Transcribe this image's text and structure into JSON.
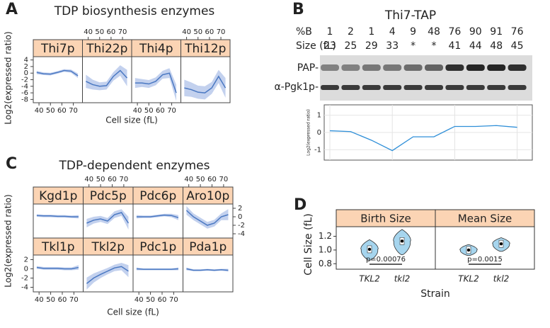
{
  "chart_data": [
    {
      "type": "facet_line",
      "panel_label": "A",
      "title": "TDP biosynthesis enzymes",
      "x_label": "Cell size (fL)",
      "y_label": "Log2(expressed ratio)",
      "xlim": [
        35,
        78
      ],
      "ylim": [
        -9,
        5
      ],
      "xticks": [
        40,
        50,
        60,
        70
      ],
      "yticks": [
        4,
        2,
        0,
        -2,
        -4,
        -6,
        -8
      ],
      "color": "#4a78c2",
      "band_color": "#c3d1ee",
      "strip_color": "#fbd4b4",
      "x": [
        38,
        44,
        50,
        56,
        62,
        68,
        74
      ],
      "facets": [
        {
          "name": "Thi7p",
          "values": [
            0.2,
            -0.2,
            -0.3,
            0.2,
            0.8,
            0.6,
            -0.8
          ],
          "lower": [
            -0.3,
            -0.6,
            -0.7,
            -0.2,
            0.4,
            0.1,
            -1.5
          ],
          "upper": [
            0.7,
            0.2,
            0.1,
            0.6,
            1.2,
            1.1,
            -0.1
          ]
        },
        {
          "name": "Thi22p",
          "values": [
            -2.5,
            -3.5,
            -4,
            -3.8,
            -1,
            0.8,
            -1.5
          ],
          "lower": [
            -4.5,
            -5,
            -5.2,
            -5,
            -2.3,
            -0.8,
            -4
          ],
          "upper": [
            -0.5,
            -2,
            -2.8,
            -2.6,
            0.3,
            2.4,
            1
          ]
        },
        {
          "name": "Thi4p",
          "values": [
            -3,
            -3,
            -3.3,
            -2.5,
            -0.5,
            0,
            -6
          ],
          "lower": [
            -4.5,
            -4.2,
            -4.5,
            -3.7,
            -1.7,
            -1.5,
            -8.5
          ],
          "upper": [
            -1.5,
            -1.8,
            -2.1,
            -1.3,
            0.7,
            1.5,
            -3.5
          ]
        },
        {
          "name": "Thi12p",
          "values": [
            -4.5,
            -5,
            -5.8,
            -6,
            -4.5,
            -1,
            -4.5
          ],
          "lower": [
            -7,
            -7.2,
            -7.8,
            -8,
            -6.3,
            -3,
            -7.5
          ],
          "upper": [
            -2,
            -2.8,
            -3.8,
            -4,
            -2.7,
            1,
            -1.5
          ]
        }
      ]
    },
    {
      "type": "blot",
      "panel_label": "B",
      "title": "Thi7-TAP",
      "row_labels": [
        "%B",
        "Size (fL)"
      ],
      "percent_b": [
        1,
        2,
        1,
        4,
        9,
        48,
        76,
        90,
        91,
        76
      ],
      "sizes": [
        23,
        25,
        29,
        33,
        "*",
        "*",
        41,
        44,
        48,
        45
      ],
      "band_labels": [
        "PAP-",
        "α-Pgk1p-"
      ],
      "y_label": "Log2(expressed ratio)",
      "ylim": [
        -1.6,
        1.6
      ],
      "yticks": [
        1,
        0,
        -1
      ],
      "color": "#2f8fd8",
      "values": [
        0.1,
        0.05,
        -0.45,
        -1.05,
        -0.25,
        -0.25,
        0.35,
        0.35,
        0.4,
        0.3
      ]
    },
    {
      "type": "facet_line",
      "panel_label": "C",
      "title": "TDP-dependent enzymes",
      "x_label": "Cell size (fL)",
      "y_label": "Log2(expressed ratio)",
      "xlim": [
        35,
        78
      ],
      "ylim": [
        -5,
        3
      ],
      "xticks": [
        40,
        50,
        60,
        70
      ],
      "yticks": [
        2,
        0,
        -2,
        -4
      ],
      "color": "#4a78c2",
      "band_color": "#c3d1ee",
      "strip_color": "#fbd4b4",
      "x": [
        38,
        44,
        50,
        56,
        62,
        68,
        74
      ],
      "facets": [
        {
          "name": "Kgd1p",
          "values": [
            0.3,
            0.2,
            0.2,
            0.1,
            0.1,
            0,
            0
          ],
          "lower": [
            0,
            -0.1,
            -0.1,
            -0.2,
            -0.2,
            -0.3,
            -0.4
          ],
          "upper": [
            0.6,
            0.5,
            0.5,
            0.4,
            0.4,
            0.3,
            0.4
          ]
        },
        {
          "name": "Pdc5p",
          "values": [
            -1.5,
            -0.8,
            -0.5,
            -1,
            0.5,
            1,
            -1.5
          ],
          "lower": [
            -2.5,
            -1.6,
            -1.2,
            -1.7,
            -0.3,
            0.2,
            -3
          ],
          "upper": [
            -0.5,
            0,
            0.2,
            -0.3,
            1.3,
            1.8,
            0
          ]
        },
        {
          "name": "Pdc6p",
          "values": [
            0,
            0,
            0,
            0.2,
            0.4,
            0.3,
            -0.2
          ],
          "lower": [
            -0.4,
            -0.3,
            -0.3,
            -0.1,
            0.1,
            -0.1,
            -0.8
          ],
          "upper": [
            0.4,
            0.3,
            0.3,
            0.5,
            0.7,
            0.7,
            0.4
          ]
        },
        {
          "name": "Aro10p",
          "values": [
            1.5,
            0,
            -1,
            -2,
            -1.5,
            0,
            0.5
          ],
          "lower": [
            0.5,
            -0.8,
            -1.8,
            -2.8,
            -2.3,
            -0.8,
            -0.8
          ],
          "upper": [
            2.5,
            0.8,
            -0.2,
            -1.2,
            -0.7,
            0.8,
            1.8
          ]
        },
        {
          "name": "Tkl1p",
          "values": [
            0.3,
            0.1,
            0.1,
            0.1,
            0,
            0,
            0.3
          ],
          "lower": [
            0,
            -0.2,
            -0.2,
            -0.2,
            -0.3,
            -0.3,
            -0.2
          ],
          "upper": [
            0.6,
            0.4,
            0.4,
            0.4,
            0.3,
            0.3,
            0.8
          ]
        },
        {
          "name": "Tkl2p",
          "values": [
            -3.2,
            -2,
            -1.2,
            -0.5,
            0.2,
            0.5,
            -0.5
          ],
          "lower": [
            -4.5,
            -3,
            -2,
            -1.2,
            -0.5,
            -0.3,
            -1.8
          ],
          "upper": [
            -1.9,
            -1,
            -0.4,
            0.2,
            0.9,
            1.3,
            0.8
          ]
        },
        {
          "name": "Pdc1p",
          "values": [
            0,
            -0.1,
            -0.1,
            -0.1,
            -0.1,
            -0.1,
            0
          ],
          "lower": [
            -0.3,
            -0.3,
            -0.3,
            -0.3,
            -0.3,
            -0.3,
            -0.3
          ],
          "upper": [
            0.3,
            0.1,
            0.1,
            0.1,
            0.1,
            0.1,
            0.3
          ]
        },
        {
          "name": "Pda1p",
          "values": [
            0,
            -0.3,
            -0.3,
            -0.2,
            -0.3,
            -0.2,
            -0.3
          ],
          "lower": [
            -0.3,
            -0.5,
            -0.5,
            -0.4,
            -0.5,
            -0.4,
            -0.6
          ],
          "upper": [
            0.3,
            -0.1,
            -0.1,
            0,
            -0.1,
            0,
            0
          ]
        }
      ]
    },
    {
      "type": "violin",
      "panel_label": "D",
      "y_label": "Cell Size (fL)",
      "x_label": "Strain",
      "ylim": [
        0.72,
        1.34
      ],
      "yticks": [
        0.8,
        {
          "value": 1,
          "label": "1.0"
        },
        1.2
      ],
      "categories": [
        "TKL2",
        "tkl2"
      ],
      "color": "#a6d5ee",
      "strip_color": "#fbd4b4",
      "facets": [
        {
          "name": "Birth Size",
          "medians": [
            1.01,
            1.13
          ],
          "mins": [
            0.85,
            0.93
          ],
          "maxs": [
            1.15,
            1.3
          ],
          "p_value": "p=0.00076"
        },
        {
          "name": "Mean Size",
          "medians": [
            1.0,
            1.09
          ],
          "mins": [
            0.92,
            0.98
          ],
          "maxs": [
            1.08,
            1.18
          ],
          "p_value": "p=0.0015"
        }
      ]
    }
  ]
}
